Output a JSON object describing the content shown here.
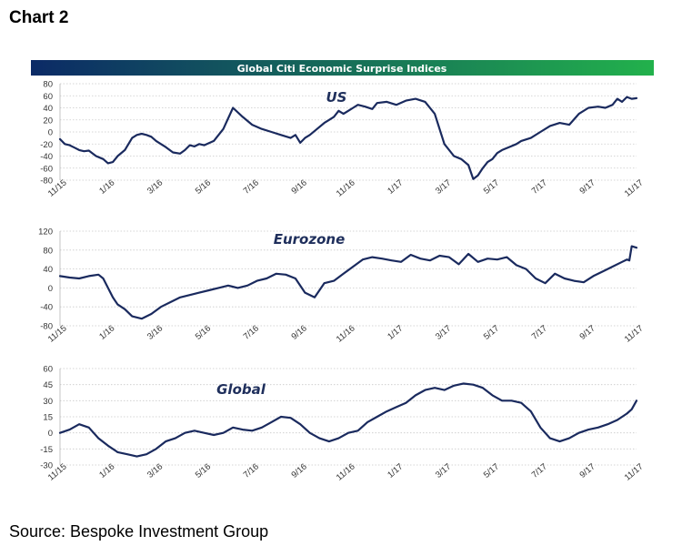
{
  "page": {
    "label": "Chart 2",
    "source": "Source: Bespoke Investment Group"
  },
  "colors": {
    "banner_start": "#0b2a66",
    "banner_end": "#22b14c",
    "series": "#1a2a5e",
    "title_text": "#1f2f5c"
  },
  "chart_data": [
    {
      "type": "line",
      "title": "Global Citi Economic Surprise Indices",
      "subtitle": "US",
      "x_tick_labels": [
        "11/15",
        "1/16",
        "3/16",
        "5/16",
        "7/16",
        "9/16",
        "11/16",
        "1/17",
        "3/17",
        "5/17",
        "7/17",
        "9/17",
        "11/17"
      ],
      "ylim": [
        -80,
        80
      ],
      "y_ticks": [
        80,
        60,
        40,
        20,
        0,
        -20,
        -40,
        -60,
        -80
      ],
      "grid": true,
      "series": [
        {
          "x": [
            0,
            0.1,
            0.2,
            0.3,
            0.4,
            0.5,
            0.6,
            0.75,
            0.9,
            1.0,
            1.1,
            1.2,
            1.35,
            1.5,
            1.6,
            1.7,
            1.8,
            1.9,
            2.0,
            2.1,
            2.2,
            2.35,
            2.5,
            2.6,
            2.7,
            2.8,
            2.9,
            3.0,
            3.2,
            3.4,
            3.6,
            3.8,
            4.0,
            4.2,
            4.4,
            4.6,
            4.8,
            4.9,
            5.0,
            5.1,
            5.2,
            5.35,
            5.5,
            5.6,
            5.7,
            5.8,
            5.9,
            6.0,
            6.1,
            6.2,
            6.35,
            6.5,
            6.6,
            6.8,
            7.0,
            7.2,
            7.4,
            7.6,
            7.8,
            8.0,
            8.2,
            8.35,
            8.5,
            8.6,
            8.7,
            8.8,
            8.9,
            9.0,
            9.1,
            9.2,
            9.35,
            9.5,
            9.6,
            9.8,
            10.0,
            10.2,
            10.4,
            10.6,
            10.8,
            11.0,
            11.2,
            11.35,
            11.5,
            11.6,
            11.7,
            11.8,
            11.9,
            12.0
          ],
          "y": [
            -12,
            -20,
            -22,
            -26,
            -30,
            -32,
            -31,
            -40,
            -45,
            -52,
            -50,
            -40,
            -30,
            -10,
            -5,
            -3,
            -5,
            -8,
            -15,
            -20,
            -25,
            -34,
            -36,
            -30,
            -22,
            -24,
            -20,
            -22,
            -15,
            5,
            40,
            25,
            12,
            5,
            0,
            -5,
            -10,
            -5,
            -18,
            -10,
            -5,
            5,
            15,
            20,
            25,
            35,
            30,
            35,
            40,
            45,
            42,
            38,
            48,
            50,
            45,
            52,
            55,
            50,
            30,
            -20,
            -40,
            -45,
            -55,
            -78,
            -72,
            -60,
            -50,
            -45,
            -35,
            -30,
            -25,
            -20,
            -15,
            -10,
            0,
            10,
            15,
            12,
            30,
            40,
            42,
            40,
            45,
            55,
            50,
            58,
            55,
            56
          ]
        }
      ]
    },
    {
      "type": "line",
      "title": "",
      "subtitle": "Eurozone",
      "x_tick_labels": [
        "11/15",
        "1/16",
        "3/16",
        "5/16",
        "7/16",
        "9/16",
        "11/16",
        "1/17",
        "3/17",
        "5/17",
        "7/17",
        "9/17",
        "11/17"
      ],
      "ylim": [
        -80,
        120
      ],
      "y_ticks": [
        120,
        80,
        40,
        0,
        -40,
        -80
      ],
      "grid": true,
      "series": [
        {
          "x": [
            0,
            0.2,
            0.4,
            0.6,
            0.8,
            0.9,
            1.0,
            1.1,
            1.2,
            1.35,
            1.5,
            1.7,
            1.9,
            2.1,
            2.3,
            2.5,
            2.7,
            2.9,
            3.1,
            3.3,
            3.5,
            3.7,
            3.9,
            4.1,
            4.3,
            4.5,
            4.7,
            4.9,
            5.1,
            5.3,
            5.5,
            5.7,
            5.9,
            6.1,
            6.3,
            6.5,
            6.7,
            6.9,
            7.1,
            7.3,
            7.5,
            7.7,
            7.9,
            8.1,
            8.3,
            8.5,
            8.7,
            8.9,
            9.1,
            9.3,
            9.5,
            9.7,
            9.9,
            10.1,
            10.3,
            10.5,
            10.7,
            10.9,
            11.1,
            11.3,
            11.5,
            11.7,
            11.8,
            11.85,
            11.9,
            12.0
          ],
          "y": [
            25,
            22,
            20,
            25,
            28,
            20,
            0,
            -20,
            -35,
            -45,
            -60,
            -65,
            -55,
            -40,
            -30,
            -20,
            -15,
            -10,
            -5,
            0,
            5,
            0,
            5,
            15,
            20,
            30,
            28,
            20,
            -10,
            -20,
            10,
            15,
            30,
            45,
            60,
            65,
            62,
            58,
            55,
            70,
            62,
            58,
            68,
            65,
            50,
            72,
            55,
            62,
            60,
            65,
            48,
            40,
            20,
            10,
            30,
            20,
            15,
            12,
            25,
            35,
            45,
            55,
            60,
            58,
            88,
            85
          ]
        }
      ]
    },
    {
      "type": "line",
      "title": "",
      "subtitle": "Global",
      "x_tick_labels": [
        "11/15",
        "1/16",
        "3/16",
        "5/16",
        "7/16",
        "9/16",
        "11/16",
        "1/17",
        "3/17",
        "5/17",
        "7/17",
        "9/17",
        "11/17"
      ],
      "ylim": [
        -30,
        60
      ],
      "y_ticks": [
        60,
        45,
        30,
        15,
        0,
        -15,
        -30
      ],
      "grid": true,
      "series": [
        {
          "x": [
            0,
            0.2,
            0.4,
            0.6,
            0.8,
            1.0,
            1.2,
            1.4,
            1.6,
            1.8,
            2.0,
            2.2,
            2.4,
            2.6,
            2.8,
            3.0,
            3.2,
            3.4,
            3.6,
            3.8,
            4.0,
            4.2,
            4.4,
            4.6,
            4.8,
            5.0,
            5.2,
            5.4,
            5.6,
            5.8,
            6.0,
            6.2,
            6.4,
            6.6,
            6.8,
            7.0,
            7.2,
            7.4,
            7.6,
            7.8,
            8.0,
            8.2,
            8.4,
            8.6,
            8.8,
            9.0,
            9.2,
            9.4,
            9.6,
            9.8,
            10.0,
            10.2,
            10.4,
            10.6,
            10.8,
            11.0,
            11.2,
            11.4,
            11.6,
            11.8,
            11.9,
            12.0
          ],
          "y": [
            0,
            3,
            8,
            5,
            -5,
            -12,
            -18,
            -20,
            -22,
            -20,
            -15,
            -8,
            -5,
            0,
            2,
            0,
            -2,
            0,
            5,
            3,
            2,
            5,
            10,
            15,
            14,
            8,
            0,
            -5,
            -8,
            -5,
            0,
            2,
            10,
            15,
            20,
            24,
            28,
            35,
            40,
            42,
            40,
            44,
            46,
            45,
            42,
            35,
            30,
            30,
            28,
            20,
            5,
            -5,
            -8,
            -5,
            0,
            3,
            5,
            8,
            12,
            18,
            22,
            30
          ]
        }
      ]
    }
  ]
}
